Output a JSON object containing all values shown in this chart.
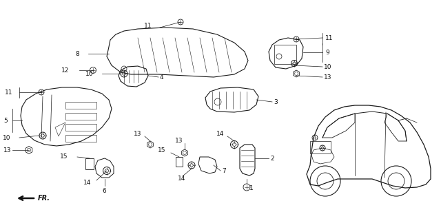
{
  "bg_color": "#ffffff",
  "fig_width": 6.4,
  "fig_height": 3.08,
  "dpi": 100,
  "line_color": "#1a1a1a",
  "text_color": "#111111",
  "label_fontsize": 6.5
}
